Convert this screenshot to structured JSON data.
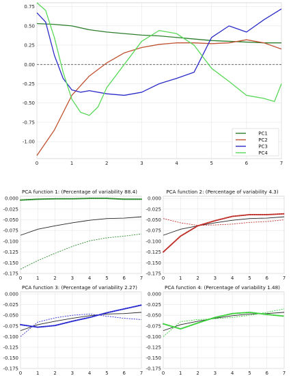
{
  "chart_data": [
    {
      "type": "line",
      "title": "",
      "xlim": [
        0,
        7
      ],
      "ylim": [
        -1.22,
        0.8
      ],
      "xticks": [
        0,
        1,
        2,
        3,
        4,
        5,
        6,
        7
      ],
      "yticks": [
        -1.0,
        -0.75,
        -0.5,
        -0.25,
        0.0,
        0.25,
        0.5,
        0.75
      ],
      "ytick_labels": [
        "-1.00",
        "-0.75",
        "-0.50",
        "-0.25",
        "0.00",
        "0.25",
        "0.50",
        "0.75"
      ],
      "grid": true,
      "zero_line": true,
      "legend_position": "lower-right",
      "legend": [
        "PC1",
        "PC2",
        "PC3",
        "PC4"
      ],
      "series": [
        {
          "name": "PC1",
          "color": "#2a7d2a",
          "x": [
            0,
            0.5,
            1,
            1.5,
            2,
            2.5,
            3,
            3.5,
            4,
            4.5,
            5,
            5.5,
            6,
            6.5,
            7
          ],
          "y": [
            0.53,
            0.52,
            0.5,
            0.45,
            0.42,
            0.4,
            0.38,
            0.37,
            0.35,
            0.33,
            0.31,
            0.3,
            0.29,
            0.28,
            0.28
          ]
        },
        {
          "name": "PC2",
          "color": "#c0502f",
          "x": [
            0,
            0.5,
            1,
            1.5,
            2,
            2.5,
            3,
            3.5,
            4,
            4.5,
            5,
            5.5,
            6,
            6.5,
            7
          ],
          "y": [
            -1.18,
            -0.85,
            -0.4,
            -0.15,
            0.02,
            0.15,
            0.22,
            0.26,
            0.28,
            0.28,
            0.27,
            0.28,
            0.32,
            0.28,
            0.2
          ]
        },
        {
          "name": "PC3",
          "color": "#2a2ac8",
          "x": [
            0,
            0.25,
            0.5,
            0.75,
            1,
            1.25,
            1.5,
            2,
            2.5,
            3,
            3.5,
            4,
            4.5,
            5,
            5.5,
            6,
            6.5,
            7
          ],
          "y": [
            0.67,
            0.55,
            0.12,
            -0.18,
            -0.33,
            -0.36,
            -0.34,
            -0.38,
            -0.4,
            -0.36,
            -0.25,
            -0.18,
            -0.1,
            0.35,
            0.5,
            0.42,
            0.58,
            0.72
          ]
        },
        {
          "name": "PC4",
          "color": "#58d858",
          "x": [
            0,
            0.25,
            0.5,
            0.75,
            1,
            1.25,
            1.5,
            1.75,
            2,
            2.5,
            3,
            3.5,
            4,
            4.5,
            5,
            5.5,
            6,
            6.5,
            6.8,
            7
          ],
          "y": [
            0.8,
            0.7,
            0.35,
            -0.1,
            -0.45,
            -0.62,
            -0.66,
            -0.55,
            -0.3,
            0.0,
            0.3,
            0.44,
            0.4,
            0.25,
            -0.05,
            -0.22,
            -0.4,
            -0.44,
            -0.48,
            -0.25
          ]
        }
      ]
    },
    {
      "type": "line",
      "title": "PCA function 1: (Percentage of variability 88.4)",
      "xlim": [
        0,
        7
      ],
      "ylim": [
        -0.175,
        0.005
      ],
      "xticks": [
        0,
        1,
        2,
        3,
        4,
        5,
        6,
        7
      ],
      "yticks": [
        0.0,
        -0.025,
        -0.05,
        -0.075,
        -0.1,
        -0.125,
        -0.15,
        -0.175
      ],
      "ytick_labels": [
        "0.000",
        "-0.025",
        "-0.050",
        "-0.075",
        "-0.100",
        "-0.125",
        "-0.150",
        "-0.175"
      ],
      "grid": true,
      "color": "#2a8a2a",
      "x": [
        0,
        1,
        2,
        3,
        4,
        5,
        6,
        7
      ],
      "mean": [
        -0.086,
        -0.072,
        -0.064,
        -0.057,
        -0.051,
        -0.047,
        -0.046,
        -0.043
      ],
      "plus": [
        -0.004,
        -0.002,
        -0.001,
        -0.001,
        0.0,
        0.0,
        -0.002,
        -0.002
      ],
      "minus": [
        -0.165,
        -0.145,
        -0.128,
        -0.112,
        -0.099,
        -0.092,
        -0.088,
        -0.083
      ]
    },
    {
      "type": "line",
      "title": "PCA function 2: (Percentage of variability 4.3)",
      "xlim": [
        0,
        7
      ],
      "ylim": [
        -0.175,
        0.005
      ],
      "xticks": [
        0,
        1,
        2,
        3,
        4,
        5,
        6,
        7
      ],
      "yticks": [
        0.0,
        -0.025,
        -0.05,
        -0.075,
        -0.1,
        -0.125,
        -0.15,
        -0.175
      ],
      "ytick_labels": [
        "0.000",
        "-0.025",
        "-0.050",
        "-0.075",
        "-0.100",
        "-0.125",
        "-0.150",
        "-0.175"
      ],
      "grid": true,
      "color": "#c0302a",
      "x": [
        0,
        1,
        2,
        3,
        4,
        5,
        6,
        7
      ],
      "mean": [
        -0.086,
        -0.072,
        -0.064,
        -0.057,
        -0.051,
        -0.047,
        -0.046,
        -0.043
      ],
      "plus": [
        -0.125,
        -0.088,
        -0.064,
        -0.052,
        -0.042,
        -0.038,
        -0.038,
        -0.036
      ],
      "minus": [
        -0.047,
        -0.057,
        -0.063,
        -0.062,
        -0.06,
        -0.056,
        -0.054,
        -0.05
      ]
    },
    {
      "type": "line",
      "title": "PCA function 3: (Percentage of variability 2.27)",
      "xlim": [
        0,
        7
      ],
      "ylim": [
        -0.175,
        0.005
      ],
      "xticks": [
        0,
        1,
        2,
        3,
        4,
        5,
        6,
        7
      ],
      "yticks": [
        0.0,
        -0.025,
        -0.05,
        -0.075,
        -0.1,
        -0.125,
        -0.15,
        -0.175
      ],
      "ytick_labels": [
        "0.000",
        "-0.025",
        "-0.050",
        "-0.075",
        "-0.100",
        "-0.125",
        "-0.150",
        "-0.175"
      ],
      "grid": true,
      "color": "#2a2ad0",
      "x": [
        0,
        1,
        2,
        3,
        4,
        5,
        6,
        7
      ],
      "mean": [
        -0.086,
        -0.072,
        -0.064,
        -0.057,
        -0.051,
        -0.047,
        -0.046,
        -0.043
      ],
      "plus": [
        -0.072,
        -0.078,
        -0.074,
        -0.064,
        -0.055,
        -0.044,
        -0.035,
        -0.026
      ],
      "minus": [
        -0.1,
        -0.066,
        -0.056,
        -0.05,
        -0.047,
        -0.052,
        -0.057,
        -0.06
      ]
    },
    {
      "type": "line",
      "title": "PCA function 4: (Percentage of variability 1.48)",
      "xlim": [
        0,
        7
      ],
      "ylim": [
        -0.175,
        0.005
      ],
      "xticks": [
        0,
        1,
        2,
        3,
        4,
        5,
        6,
        7
      ],
      "yticks": [
        0.0,
        -0.025,
        -0.05,
        -0.075,
        -0.1,
        -0.125,
        -0.15,
        -0.175
      ],
      "ytick_labels": [
        "0.000",
        "-0.025",
        "-0.050",
        "-0.075",
        "-0.100",
        "-0.125",
        "-0.150",
        "-0.175"
      ],
      "grid": true,
      "color": "#3ad03a",
      "x": [
        0,
        1,
        2,
        3,
        4,
        5,
        6,
        7
      ],
      "mean": [
        -0.086,
        -0.072,
        -0.064,
        -0.057,
        -0.051,
        -0.047,
        -0.046,
        -0.043
      ],
      "plus": [
        -0.07,
        -0.082,
        -0.068,
        -0.055,
        -0.046,
        -0.043,
        -0.048,
        -0.052
      ],
      "minus": [
        -0.1,
        -0.065,
        -0.06,
        -0.058,
        -0.055,
        -0.05,
        -0.043,
        -0.035
      ]
    }
  ]
}
